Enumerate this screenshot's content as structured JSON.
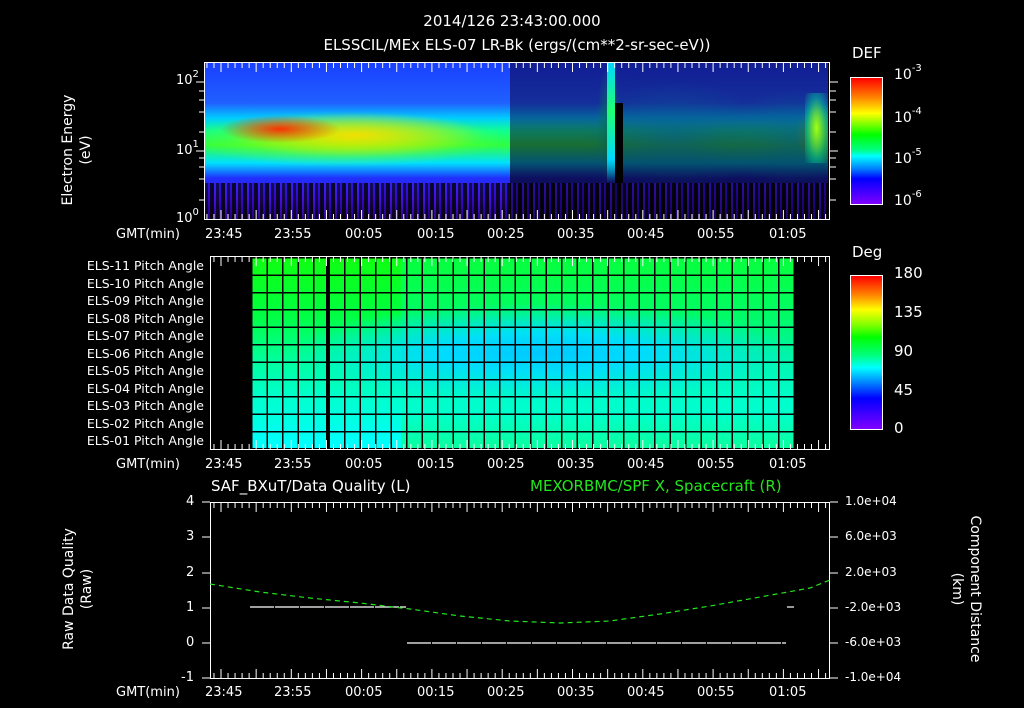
{
  "header": {
    "timestamp": "2014/126 23:43:00.000",
    "subtitle": "ELSSCIL/MEx ELS-07 LR-Bk  (ergs/(cm**2-sr-sec-eV))"
  },
  "time_axis": {
    "label": "GMT(min)",
    "ticks": [
      "23:45",
      "23:55",
      "00:05",
      "00:15",
      "00:25",
      "00:35",
      "00:45",
      "00:55",
      "01:05"
    ]
  },
  "panel1": {
    "ylabel_line1": "Electron Energy",
    "ylabel_line2": "(eV)",
    "yticks": [
      {
        "base": "10",
        "exp": "2"
      },
      {
        "base": "10",
        "exp": "1"
      },
      {
        "base": "10",
        "exp": "0"
      }
    ],
    "colorbar": {
      "title": "DEF",
      "ticks": [
        {
          "base": "10",
          "exp": "-3"
        },
        {
          "base": "10",
          "exp": "-4"
        },
        {
          "base": "10",
          "exp": "-5"
        },
        {
          "base": "10",
          "exp": "-6"
        }
      ]
    }
  },
  "panel2": {
    "row_labels": [
      "ELS-11 Pitch Angle",
      "ELS-10 Pitch Angle",
      "ELS-09 Pitch Angle",
      "ELS-08 Pitch Angle",
      "ELS-07 Pitch Angle",
      "ELS-06 Pitch Angle",
      "ELS-05 Pitch Angle",
      "ELS-04 Pitch Angle",
      "ELS-03 Pitch Angle",
      "ELS-02 Pitch Angle",
      "ELS-01 Pitch Angle"
    ],
    "colorbar": {
      "title": "Deg",
      "ticks": [
        "180",
        "135",
        "90",
        "45",
        "0"
      ]
    }
  },
  "panel3": {
    "left_title": "SAF_BXuT/Data Quality (L)",
    "right_title": "MEXORBMC/SPF X, Spacecraft (R)",
    "ylabel_left_line1": "Raw Data Quality",
    "ylabel_left_line2": "(Raw)",
    "ylabel_right_line1": "Component Distance",
    "ylabel_right_line2": "(km)",
    "yticks_left": [
      "4",
      "3",
      "2",
      "1",
      "0",
      "-1"
    ],
    "yticks_right": [
      "1.0e+04",
      "6.0e+03",
      "2.0e+03",
      "-2.0e+03",
      "-6.0e+03",
      "-1.0e+04"
    ],
    "colors": {
      "right_series": "#22e61c",
      "left_series": "#ffffff"
    }
  },
  "chart_data": [
    {
      "type": "heatmap",
      "title": "ELSSCIL/MEx ELS-07 LR-Bk (ergs/(cm**2-sr-sec-eV))",
      "xlabel": "GMT(min)",
      "ylabel": "Electron Energy (eV)",
      "yscale": "log",
      "ylim": [
        1,
        150
      ],
      "x_ticks": [
        "23:45",
        "23:55",
        "00:05",
        "00:15",
        "00:25",
        "00:35",
        "00:45",
        "00:55",
        "01:05"
      ],
      "colorbar": {
        "label": "DEF",
        "scale": "log",
        "range": [
          1e-06,
          0.001
        ]
      },
      "features": [
        {
          "time_range": [
            "23:43",
            "00:26"
          ],
          "energy_peak_eV": 15,
          "peak_DEF": 0.0005,
          "note": "intense band 8-30 eV, strongest 23:50-23:58"
        },
        {
          "time_range": [
            "00:38",
            "00:39"
          ],
          "energy_range_eV": [
            5,
            100
          ],
          "peak_DEF": 5e-05,
          "note": "narrow vertical burst"
        },
        {
          "time_range": [
            "01:07",
            "01:12"
          ],
          "energy_peak_eV": 18,
          "peak_DEF": 0.0001,
          "note": "enhancement at right edge"
        }
      ]
    },
    {
      "type": "heatmap",
      "title": "ELS Pitch Angle",
      "xlabel": "GMT(min)",
      "categories": [
        "ELS-11",
        "ELS-10",
        "ELS-09",
        "ELS-08",
        "ELS-07",
        "ELS-06",
        "ELS-05",
        "ELS-04",
        "ELS-03",
        "ELS-02",
        "ELS-01"
      ],
      "colorbar": {
        "label": "Deg",
        "range": [
          0,
          180
        ]
      },
      "data_time_range": [
        "23:50",
        "01:06"
      ],
      "values_early_deg": [
        105,
        108,
        110,
        110,
        108,
        105,
        100,
        95,
        90,
        80,
        75
      ],
      "values_mid_deg": [
        100,
        88,
        75,
        65,
        55,
        55,
        65,
        75,
        88,
        98,
        105
      ],
      "values_late_deg": [
        102,
        95,
        90,
        85,
        78,
        78,
        85,
        90,
        95,
        100,
        105
      ]
    },
    {
      "type": "line",
      "title": "SAF_BXuT/Data Quality (L) ; MEXORBMC/SPF X, Spacecraft (R)",
      "xlabel": "GMT(min)",
      "x_ticks": [
        "23:45",
        "23:55",
        "00:05",
        "00:15",
        "00:25",
        "00:35",
        "00:45",
        "00:55",
        "01:05"
      ],
      "series": [
        {
          "name": "Raw Data Quality (L)",
          "axis": "left",
          "ylim": [
            -1,
            4
          ],
          "x": [
            "23:50",
            "00:10",
            "00:10",
            "01:06"
          ],
          "values": [
            1,
            1,
            0,
            0
          ]
        },
        {
          "name": "SPF X Spacecraft (R, km)",
          "axis": "right",
          "ylim": [
            -10000,
            10000
          ],
          "style": "dashed",
          "x": [
            "23:43",
            "23:55",
            "00:05",
            "00:15",
            "00:25",
            "00:35",
            "00:45",
            "00:55",
            "01:05",
            "01:12"
          ],
          "values": [
            2400,
            800,
            -600,
            -1800,
            -2800,
            -3100,
            -2600,
            -1300,
            400,
            2500
          ]
        }
      ]
    }
  ]
}
